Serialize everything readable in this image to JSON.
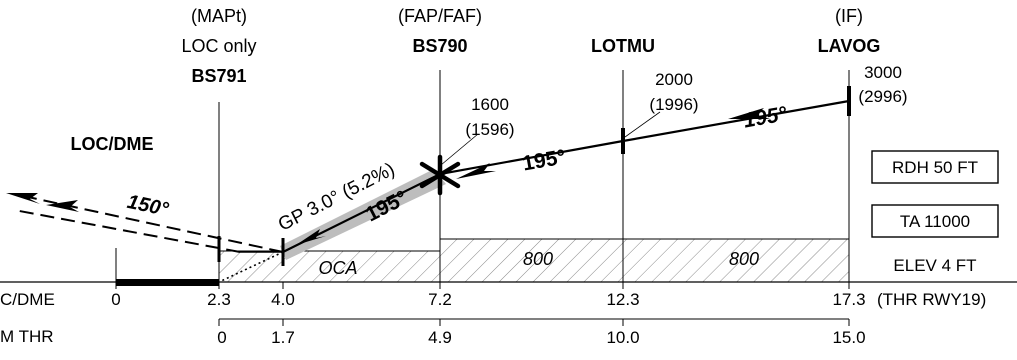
{
  "fixes": {
    "mapt": {
      "role": "(MAPt)",
      "note": "LOC only",
      "name": "BS791"
    },
    "faf": {
      "role": "(FAP/FAF)",
      "name": "BS790"
    },
    "lotmu": {
      "name": "LOTMU"
    },
    "lavog": {
      "role": "(IF)",
      "name": "LAVOG"
    }
  },
  "navaid": {
    "name": "LOC/DME"
  },
  "altitudes": {
    "faf": {
      "alt": "1600",
      "height": "(1596)"
    },
    "lotmu": {
      "alt": "2000",
      "height": "(1996)"
    },
    "lavog": {
      "alt": "3000",
      "height": "(2996)"
    }
  },
  "tracks": {
    "missed": "150°",
    "final": "195°",
    "intermediate": "195°",
    "initial": "195°"
  },
  "glidepath": {
    "label": "GP 3.0° (5.2%)"
  },
  "minimums": {
    "oca": "OCA",
    "seg_mid": "800",
    "seg_outer": "800"
  },
  "info_boxes": {
    "rdh": "RDH 50 FT",
    "ta": "TA 11000"
  },
  "elevation": "ELEV 4 FT",
  "scales": {
    "dme_label": "C/DME",
    "dme_values": [
      "0",
      "2.3",
      "4.0",
      "7.2",
      "12.3",
      "17.3"
    ],
    "dme_reference": "(THR RWY19)",
    "thr_label": "M THR",
    "thr_values": [
      "0",
      "1.7",
      "4.9",
      "10.0",
      "15.0"
    ]
  },
  "colors": {
    "ink": "#000000",
    "glidepath_band": "#bdbdbd",
    "hatch": "#8a8a8a"
  }
}
